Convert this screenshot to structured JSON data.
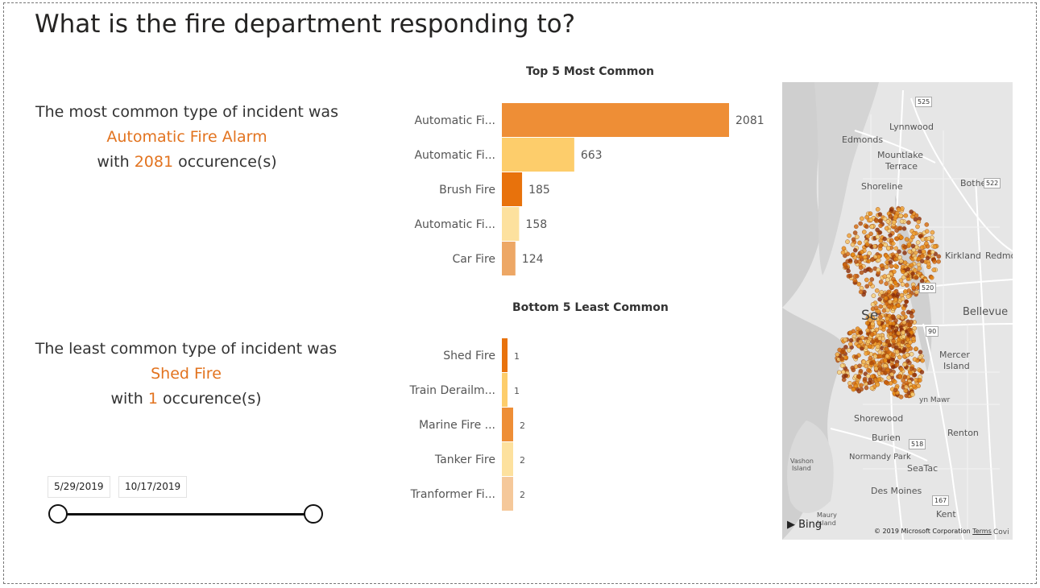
{
  "page": {
    "title": "What is the fire department responding to?"
  },
  "most_common": {
    "prefix": "The most common type of incident was",
    "incident": "Automatic Fire Alarm",
    "with": "with",
    "count": "2081",
    "suffix": "occurence(s)"
  },
  "least_common": {
    "prefix": "The least common type of incident was",
    "incident": "Shed Fire",
    "with": "with",
    "count": "1",
    "suffix": "occurence(s)"
  },
  "date_range": {
    "start": "5/29/2019",
    "end": "10/17/2019"
  },
  "chart_data": [
    {
      "type": "bar",
      "orientation": "horizontal",
      "title": "Top 5 Most Common",
      "categories": [
        "Automatic Fi...",
        "Automatic Fi...",
        "Brush Fire",
        "Automatic Fi...",
        "Car Fire"
      ],
      "values": [
        2081,
        663,
        185,
        158,
        124
      ],
      "value_labels": [
        "2081",
        "663",
        "185",
        "158",
        "124"
      ],
      "colors": [
        "#ee8e36",
        "#fdcd6b",
        "#e8720c",
        "#fde19e",
        "#eda765"
      ],
      "xlim": [
        0,
        2081
      ]
    },
    {
      "type": "bar",
      "orientation": "horizontal",
      "title": "Bottom 5 Least Common",
      "categories": [
        "Shed Fire",
        "Train Derailm...",
        "Marine Fire ...",
        "Tanker Fire",
        "Tranformer Fi..."
      ],
      "values": [
        1,
        1,
        2,
        2,
        2
      ],
      "value_labels": [
        "1",
        "1",
        "2",
        "2",
        "2"
      ],
      "colors": [
        "#e8720c",
        "#fdcd6b",
        "#ee8e36",
        "#fde19e",
        "#f5c89a"
      ],
      "xlim": [
        0,
        36
      ]
    }
  ],
  "map": {
    "labels": [
      "Lynnwood",
      "Edmonds",
      "Mountlake",
      "Terrace",
      "Shoreline",
      "Bothell",
      "Kirkland",
      "Redmo",
      "Bellevue",
      "Se",
      "Mercer",
      "Island",
      "Shorewood",
      "Burien",
      "Renton",
      "Normandy Park",
      "SeaTac",
      "Vashon",
      "Island",
      "Des Moines",
      "Maury",
      "Island",
      "Kent",
      "Covi",
      "yn Mawr"
    ],
    "shields": [
      "525",
      "522",
      "520",
      "90",
      "518",
      "167"
    ],
    "attribution": "Bing",
    "copyright": "© 2019 Microsoft Corporation",
    "terms": "Terms"
  }
}
